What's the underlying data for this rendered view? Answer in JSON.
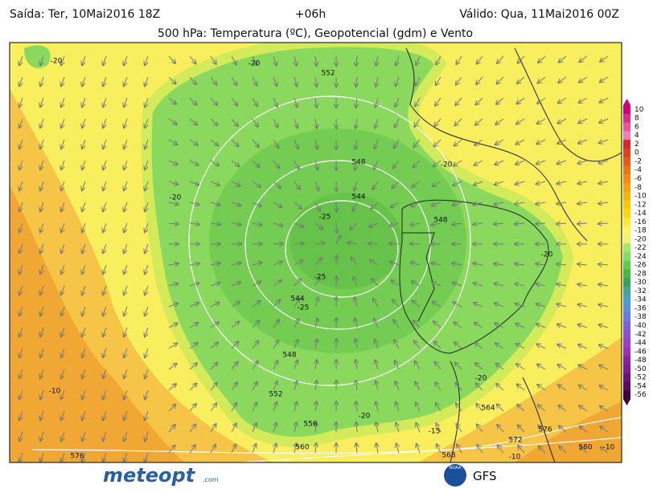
{
  "header": {
    "issued": "Saída: Ter, 10Mai2016 18Z",
    "lead": "+06h",
    "valid": "Válido: Qua, 11Mai2016 00Z",
    "title": "500 hPa: Temperatura (ºC), Geopotencial (gdm) e Vento"
  },
  "map": {
    "contour_labels": [
      "-20",
      "-20",
      "552",
      "548",
      "-20",
      "-20",
      "544",
      "-25",
      "548",
      "-20",
      "-25",
      "544",
      "-25",
      "548",
      "-10",
      "-20",
      "552",
      "564",
      "-20",
      "556",
      "-15",
      "576",
      "572",
      "560",
      "580",
      "-10",
      "568",
      "576",
      "-10"
    ]
  },
  "colorbar": {
    "labels": [
      10,
      8,
      6,
      4,
      2,
      0,
      -2,
      -4,
      -6,
      -8,
      -10,
      -12,
      -14,
      -16,
      -18,
      -20,
      -22,
      -24,
      -26,
      -28,
      -30,
      -32,
      -34,
      -36,
      -38,
      -40,
      -42,
      -44,
      -46,
      -48,
      -50,
      -52,
      -54,
      -56
    ],
    "colors": [
      "#d1007b",
      "#dd2b8c",
      "#e7559e",
      "#ef7fb2",
      "#d9262a",
      "#e0401e",
      "#e85a1a",
      "#ef7316",
      "#f38a12",
      "#f7a00e",
      "#f9b40c",
      "#fbc60a",
      "#fdd80a",
      "#fde830",
      "#fff35a",
      "#eef36a",
      "#a6e860",
      "#7ee25a",
      "#5fcf48",
      "#48b83e",
      "#37a35a",
      "#3eaa8a",
      "#4aa0c8",
      "#5a8ee0",
      "#6a78e0",
      "#7a60d8",
      "#8a50d0",
      "#9a40c8",
      "#a030b8",
      "#9020a0",
      "#801a90",
      "#6a1078",
      "#580a60",
      "#400040"
    ]
  },
  "footer": {
    "brand": "meteopt",
    "domain": ".com",
    "agency": "NOAA",
    "model": "GFS"
  }
}
